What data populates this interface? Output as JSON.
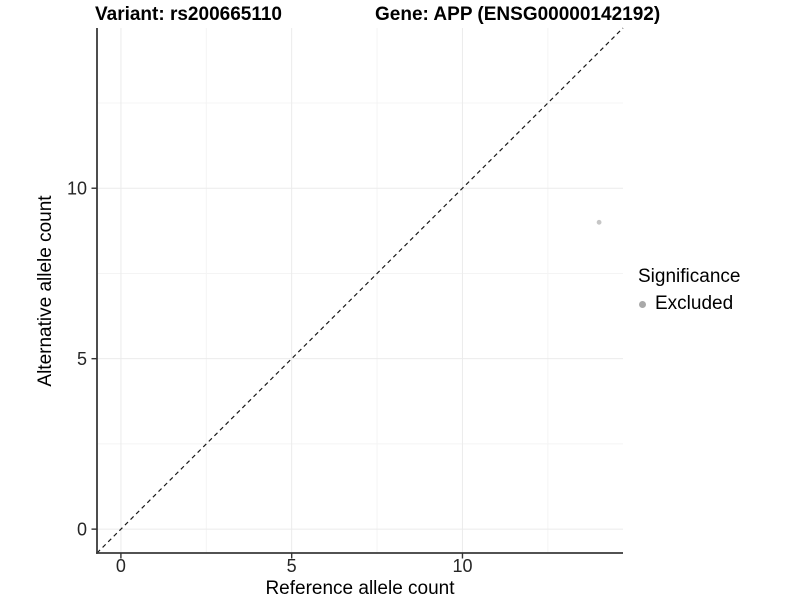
{
  "chart_data": {
    "type": "scatter",
    "titles": {
      "left": "Variant: rs200665110",
      "right": "Gene: APP (ENSG00000142192)"
    },
    "xlabel": "Reference allele count",
    "ylabel": "Alternative allele count",
    "xlim": [
      -0.7,
      14.7
    ],
    "ylim": [
      -0.7,
      14.7
    ],
    "x_ticks": [
      0,
      5,
      10
    ],
    "y_ticks": [
      0,
      5,
      10
    ],
    "x_minor_ticks": [
      2.5,
      7.5,
      12.5
    ],
    "y_minor_ticks": [
      2.5,
      7.5,
      12.5
    ],
    "grid": "major and minor, light gray on white",
    "points": [
      {
        "x": 14,
        "y": 9,
        "series": "Excluded"
      }
    ],
    "identity_line": {
      "slope": 1,
      "intercept": 0,
      "style": "dashed",
      "note": "y = x reference line"
    },
    "legend": {
      "title": "Significance",
      "position": "right",
      "entries": [
        {
          "label": "Excluded",
          "color": "#a9a9a9"
        }
      ]
    },
    "colors": {
      "point": "#c6c6c6",
      "legend_point": "#a9a9a9",
      "grid_major": "#ebebeb",
      "grid_minor": "#f4f4f4",
      "axis_line": "#3a3a3a",
      "tick_mark": "#333333",
      "tick_label": "#262626",
      "dashed_line": "#1a1a1a",
      "background": "#ffffff"
    }
  }
}
